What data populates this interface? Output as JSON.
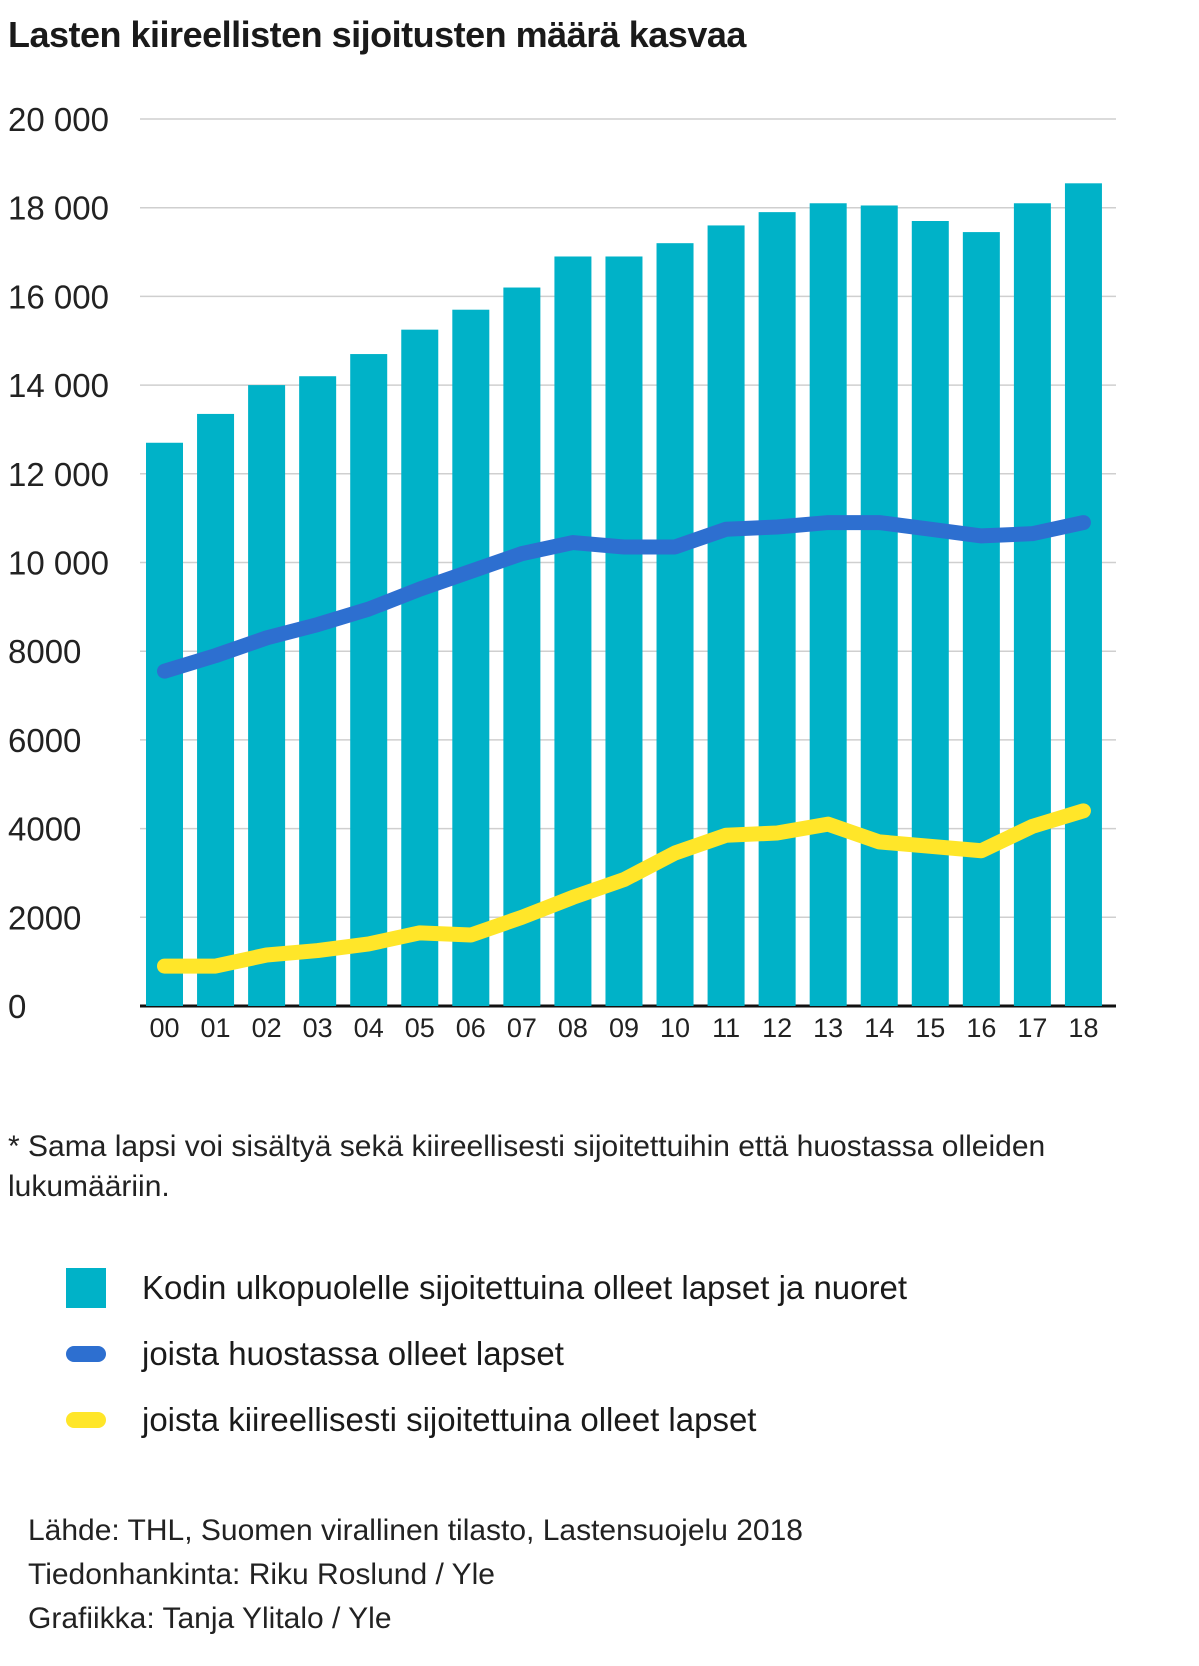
{
  "title": "Lasten kiireellisten sijoitusten määrä kasvaa",
  "note": "* Sama lapsi voi sisältyä sekä kiireellisesti sijoitettuihin että huostassa olleiden lukumääriin.",
  "colors": {
    "bars": "#00b2c8",
    "custody_line": "#2d6fd0",
    "urgent_line": "#ffe629",
    "grid": "#cfcfcf"
  },
  "legend": [
    {
      "label": "Kodin ulkopuolelle sijoitettuina olleet lapset ja nuoret",
      "kind": "box",
      "color": "#00b2c8"
    },
    {
      "label": "joista huostassa olleet lapset",
      "kind": "line",
      "color": "#2d6fd0"
    },
    {
      "label": "joista kiireellisesti sijoitettuina olleet lapset",
      "kind": "line",
      "color": "#ffe629"
    }
  ],
  "credits": {
    "source": "Lähde: THL, Suomen virallinen tilasto, Lastensuojelu 2018",
    "research": "Tiedonhankinta: Riku Roslund / Yle",
    "graphics": "Grafiikka: Tanja Ylitalo / Yle"
  },
  "chart_data": {
    "type": "bar",
    "categories": [
      "00",
      "01",
      "02",
      "03",
      "04",
      "05",
      "06",
      "07",
      "08",
      "09",
      "10",
      "11",
      "12",
      "13",
      "14",
      "15",
      "16",
      "17",
      "18"
    ],
    "ylim": [
      0,
      20000
    ],
    "yticks": [
      0,
      2000,
      4000,
      6000,
      8000,
      10000,
      12000,
      14000,
      16000,
      18000,
      20000
    ],
    "ytick_labels": [
      "0",
      "2000",
      "4000",
      "6000",
      "8000",
      "10 000",
      "12 000",
      "14 000",
      "16 000",
      "18 000",
      "20 000"
    ],
    "grid": true,
    "series": [
      {
        "name": "Kodin ulkopuolelle sijoitettuina olleet lapset ja nuoret",
        "type": "bar",
        "values": [
          12700,
          13350,
          14000,
          14200,
          14700,
          15250,
          15700,
          16200,
          16900,
          16900,
          17200,
          17600,
          17900,
          18100,
          18050,
          17700,
          17450,
          18100,
          18550
        ]
      },
      {
        "name": "joista huostassa olleet lapset",
        "type": "line",
        "values": [
          7550,
          7900,
          8300,
          8600,
          8950,
          9400,
          9800,
          10200,
          10450,
          10350,
          10350,
          10750,
          10800,
          10900,
          10900,
          10750,
          10600,
          10650,
          10900
        ]
      },
      {
        "name": "joista kiireellisesti sijoitettuina olleet lapset",
        "type": "line",
        "values": [
          900,
          900,
          1150,
          1250,
          1400,
          1650,
          1600,
          2000,
          2450,
          2850,
          3450,
          3850,
          3900,
          4100,
          3700,
          3600,
          3500,
          4050,
          4400
        ]
      }
    ]
  }
}
